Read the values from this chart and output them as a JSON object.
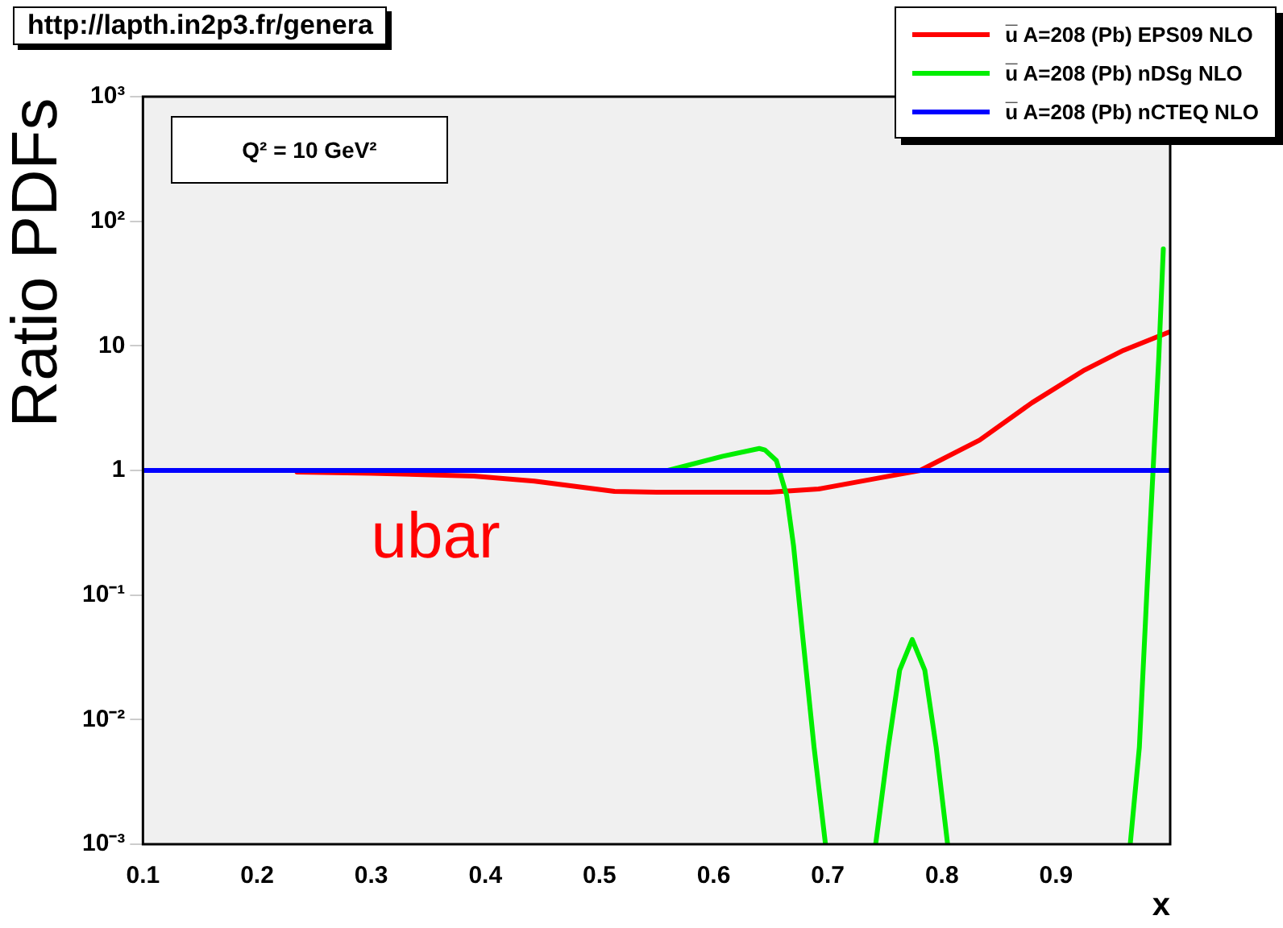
{
  "chart_data": {
    "type": "line",
    "ylabel": "Ratio PDFs",
    "xlabel": "x",
    "annotations": [
      "http://lapth.in2p3.fr/genera",
      "Q² = 10 GeV²",
      "ubar"
    ],
    "xlim": [
      0.1,
      1.0
    ],
    "xticks": [
      0.1,
      0.2,
      0.3,
      0.4,
      0.5,
      0.6,
      0.7,
      0.8,
      0.9
    ],
    "ylim": [
      0.001,
      1000
    ],
    "log": true,
    "yticks": [
      {
        "value": 0.001,
        "label": "10⁻³"
      },
      {
        "value": 0.01,
        "label": "10⁻²"
      },
      {
        "value": 0.1,
        "label": "10⁻¹"
      },
      1,
      10,
      {
        "value": 100,
        "label": "10²"
      },
      {
        "value": 1000,
        "label": "10³"
      }
    ],
    "grid": false,
    "legend": "top right",
    "marker": "none",
    "line_style": "solid",
    "series": [
      {
        "name": "u̅  A=208 (Pb) EPS09 NLO",
        "color": "#ff0000",
        "x": [
          0.235,
          0.3,
          0.39,
          0.443,
          0.513,
          0.55,
          0.649,
          0.692,
          0.739,
          0.781,
          0.833,
          0.879,
          0.925,
          0.959,
          0.999
        ],
        "values": [
          0.97,
          0.95,
          0.9,
          0.82,
          0.68,
          0.67,
          0.67,
          0.71,
          0.85,
          1.0,
          1.75,
          3.5,
          6.4,
          9.2,
          12.9
        ]
      },
      {
        "name": "u̅  A=208 (Pb) nDSg NLO",
        "color": "#00ee00",
        "x": [
          0.1,
          0.56,
          0.608,
          0.64,
          0.645,
          0.655,
          0.664,
          0.67,
          0.678,
          0.688,
          0.698,
          0.72,
          0.742,
          0.753,
          0.763,
          0.774,
          0.785,
          0.795,
          0.805,
          0.88,
          0.965,
          0.973,
          0.98,
          0.985,
          0.99,
          0.994
        ],
        "values": [
          1,
          1,
          1.3,
          1.5,
          1.46,
          1.2,
          0.63,
          0.25,
          0.047,
          0.006,
          0.001,
          null,
          0.001,
          0.006,
          0.025,
          0.044,
          0.025,
          0.006,
          0.001,
          null,
          0.001,
          0.006,
          0.126,
          1.0,
          8,
          60
        ]
      },
      {
        "name": "u̅  A=208 (Pb) nCTEQ NLO",
        "color": "#0000ff",
        "x": [
          0.1,
          1.0
        ],
        "values": [
          1,
          1
        ]
      }
    ]
  }
}
